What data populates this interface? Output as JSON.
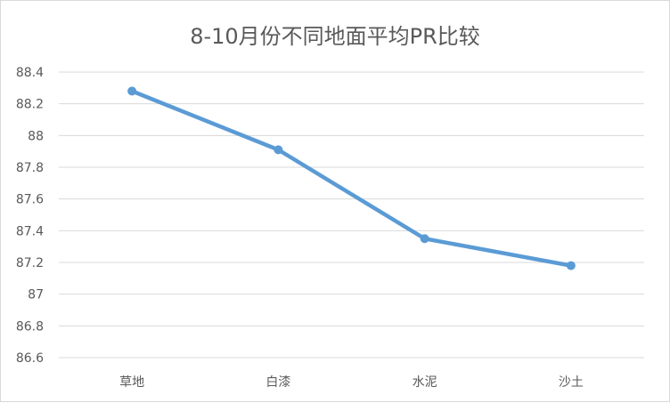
{
  "chart_data": {
    "type": "line",
    "title": "8-10月份不同地面平均PR比较",
    "categories": [
      "草地",
      "白漆",
      "水泥",
      "沙土"
    ],
    "series": [
      {
        "values": [
          88.28,
          87.91,
          87.35,
          87.18
        ],
        "color": "#5b9bd5"
      }
    ],
    "ylim": [
      86.6,
      88.4
    ],
    "yticks": [
      "86.6",
      "86.8",
      "87",
      "87.2",
      "87.4",
      "87.6",
      "87.8",
      "88",
      "88.2",
      "88.4"
    ],
    "grid": true,
    "legend": "none",
    "xlabel": "",
    "ylabel": ""
  }
}
